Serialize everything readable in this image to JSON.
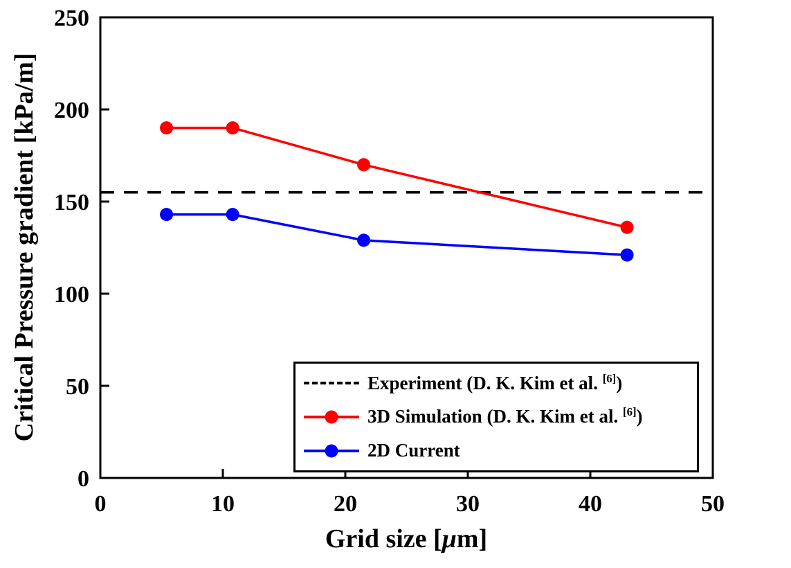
{
  "chart_data": {
    "type": "line",
    "title": "",
    "xlabel": "Grid size [μm]",
    "xlabel_parts": {
      "pre": "Grid size [",
      "mu": "μ",
      "post": "m]"
    },
    "ylabel": "Critical Pressure gradient [kPa/m]",
    "xlim": [
      0,
      50
    ],
    "ylim": [
      0,
      250
    ],
    "xticks": [
      0,
      10,
      20,
      30,
      40,
      50
    ],
    "yticks": [
      0,
      50,
      100,
      150,
      200,
      250
    ],
    "grid": false,
    "legend_position": "inside lower right",
    "axis_color": "#000000",
    "series": [
      {
        "name": "Experiment (D. K. Kim et al. [6])",
        "style": "dashed",
        "color": "#000000",
        "hline_y": 155
      },
      {
        "name": "3D Simulation (D. K. Kim et al. [6])",
        "style": "solid",
        "marker": "circle",
        "color": "#ff0000",
        "x": [
          5.4,
          10.8,
          21.5,
          43
        ],
        "y": [
          190,
          190,
          170,
          136
        ]
      },
      {
        "name": "2D Current",
        "style": "solid",
        "marker": "circle",
        "color": "#0000ff",
        "x": [
          5.4,
          10.8,
          21.5,
          43
        ],
        "y": [
          143,
          143,
          129,
          121
        ]
      }
    ],
    "legend": [
      {
        "pre": "Experiment (D. K. Kim et al. ",
        "sup": "[6]",
        "post": ")",
        "color": "#000000",
        "dashed": true,
        "marker": false
      },
      {
        "pre": "3D Simulation (D. K. Kim et al. ",
        "sup": "[6]",
        "post": ")",
        "color": "#ff0000",
        "dashed": false,
        "marker": true
      },
      {
        "pre": "2D Current",
        "sup": "",
        "post": "",
        "color": "#0000ff",
        "dashed": false,
        "marker": true
      }
    ]
  }
}
